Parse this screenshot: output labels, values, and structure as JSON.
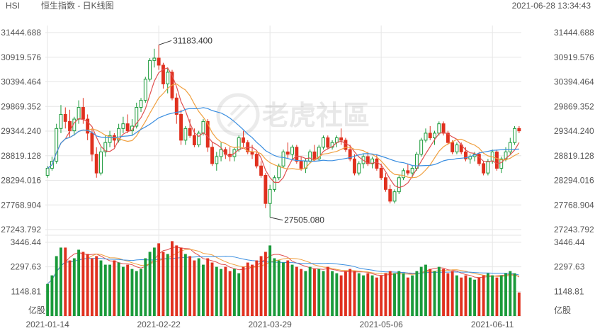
{
  "header": {
    "symbol": "HSI",
    "name": "恒生指数 - 日K线图",
    "datetime": "2021-06-28 13:34:43"
  },
  "watermark": {
    "text": "老虎社區"
  },
  "colors": {
    "up": "#1a9a3a",
    "down": "#e0301e",
    "ma5": "#e05050",
    "ma10": "#f0a040",
    "ma20": "#3a8ee0",
    "grid": "#e6e6e6",
    "text": "#555555"
  },
  "chart_data": {
    "type": "candlestick",
    "price_axis": {
      "ticks": [
        "31444.688",
        "30919.576",
        "30394.464",
        "29869.352",
        "29344.240",
        "28819.128",
        "28294.016",
        "27768.904",
        "27243.792"
      ],
      "range": [
        27243.792,
        31444.688
      ]
    },
    "volume_axis": {
      "ticks": [
        "3446.44",
        "2297.63",
        "1148.81"
      ],
      "unit": "亿股",
      "range": [
        0,
        3446.44
      ]
    },
    "x_ticks": [
      {
        "label": "2021-01-14",
        "index": 0
      },
      {
        "label": "2021-02-22",
        "index": 25
      },
      {
        "label": "2021-03-29",
        "index": 50
      },
      {
        "label": "2021-05-06",
        "index": 75
      },
      {
        "label": "2021-06-11",
        "index": 100
      }
    ],
    "annotations": [
      {
        "label": "31183.400",
        "index": 25,
        "value": 31183.4,
        "kind": "high"
      },
      {
        "label": "27505.080",
        "index": 50,
        "value": 27505.08,
        "kind": "low"
      }
    ],
    "candles": [
      [
        28400,
        28600,
        28350,
        28550,
        1500
      ],
      [
        28550,
        28800,
        28500,
        28700,
        1900
      ],
      [
        28700,
        29500,
        28650,
        29400,
        2800
      ],
      [
        29400,
        29900,
        29300,
        29700,
        3200
      ],
      [
        29700,
        29850,
        29400,
        29550,
        3200
      ],
      [
        29550,
        29800,
        29200,
        29350,
        2600
      ],
      [
        29350,
        29650,
        29250,
        29600,
        2700
      ],
      [
        29600,
        30000,
        29500,
        29850,
        3100
      ],
      [
        29850,
        30050,
        29500,
        29600,
        3000
      ],
      [
        29600,
        29700,
        29150,
        29300,
        2900
      ],
      [
        29300,
        29400,
        28700,
        28850,
        2700
      ],
      [
        28850,
        29000,
        28350,
        28450,
        2800
      ],
      [
        28450,
        29000,
        28400,
        28900,
        2600
      ],
      [
        28900,
        29250,
        28800,
        29100,
        2400
      ],
      [
        29100,
        29350,
        29000,
        29250,
        2400
      ],
      [
        29250,
        29300,
        29000,
        29150,
        2600
      ],
      [
        29150,
        29500,
        29100,
        29400,
        2500
      ],
      [
        29400,
        29650,
        29300,
        29500,
        2300
      ],
      [
        29500,
        29700,
        29300,
        29350,
        2400
      ],
      [
        29350,
        29600,
        29250,
        29450,
        2200
      ],
      [
        29450,
        29950,
        29400,
        29850,
        2100
      ],
      [
        29850,
        30050,
        29750,
        30000,
        2200
      ],
      [
        30000,
        30500,
        29950,
        30450,
        2700
      ],
      [
        30450,
        30900,
        30400,
        30850,
        3000
      ],
      [
        30850,
        31100,
        30700,
        30900,
        3200
      ],
      [
        30900,
        31183.4,
        30650,
        30750,
        3400
      ],
      [
        30750,
        30800,
        30250,
        30350,
        3000
      ],
      [
        30350,
        30700,
        30150,
        30600,
        2900
      ],
      [
        30600,
        30650,
        30000,
        30050,
        3500
      ],
      [
        30050,
        30150,
        29500,
        29700,
        3300
      ],
      [
        29700,
        29800,
        29050,
        29150,
        3200
      ],
      [
        29150,
        29450,
        29050,
        29400,
        2900
      ],
      [
        29400,
        29600,
        29200,
        29250,
        2800
      ],
      [
        29250,
        29400,
        29000,
        29050,
        2600
      ],
      [
        29050,
        29350,
        29000,
        29300,
        2700
      ],
      [
        29300,
        29600,
        29250,
        29550,
        2400
      ],
      [
        29550,
        29600,
        28900,
        29000,
        2700
      ],
      [
        29000,
        29100,
        28600,
        28650,
        2500
      ],
      [
        28650,
        28900,
        28500,
        28800,
        2300
      ],
      [
        28800,
        29100,
        28700,
        28950,
        2200
      ],
      [
        28950,
        29000,
        28750,
        28850,
        2300
      ],
      [
        28850,
        29000,
        28700,
        28800,
        2100
      ],
      [
        28800,
        29000,
        28700,
        28950,
        2200
      ],
      [
        28950,
        29250,
        28900,
        29200,
        2000
      ],
      [
        29200,
        29350,
        29000,
        29100,
        2300
      ],
      [
        29100,
        29150,
        28850,
        28900,
        2500
      ],
      [
        28900,
        29050,
        28750,
        28850,
        2400
      ],
      [
        28850,
        28900,
        28550,
        28600,
        2600
      ],
      [
        28600,
        28700,
        28350,
        28400,
        2800
      ],
      [
        28400,
        28450,
        27700,
        27800,
        3000
      ],
      [
        27800,
        28200,
        27505.08,
        28100,
        3300
      ],
      [
        28100,
        28400,
        28050,
        28350,
        2700
      ],
      [
        28350,
        28650,
        28300,
        28600,
        2600
      ],
      [
        28600,
        28950,
        28550,
        28900,
        2500
      ],
      [
        28900,
        29100,
        28750,
        28850,
        2600
      ],
      [
        28850,
        29050,
        28750,
        29000,
        2400
      ],
      [
        29000,
        29050,
        28650,
        28700,
        2300
      ],
      [
        28700,
        28800,
        28500,
        28550,
        2200
      ],
      [
        28550,
        28750,
        28450,
        28700,
        2100
      ],
      [
        28700,
        28950,
        28650,
        28900,
        2300
      ],
      [
        28900,
        29050,
        28700,
        28750,
        2200
      ],
      [
        28750,
        29050,
        28700,
        29000,
        2200
      ],
      [
        29000,
        29250,
        28950,
        29200,
        2100
      ],
      [
        29200,
        29250,
        28950,
        29000,
        2300
      ],
      [
        29000,
        29150,
        28950,
        29100,
        2100
      ],
      [
        29100,
        29250,
        29000,
        29200,
        2000
      ],
      [
        29200,
        29400,
        29050,
        29150,
        1900
      ],
      [
        29150,
        29200,
        28900,
        28950,
        2100
      ],
      [
        28950,
        29050,
        28700,
        28750,
        2200
      ],
      [
        28750,
        28850,
        28400,
        28450,
        2100
      ],
      [
        28450,
        28700,
        28400,
        28650,
        2000
      ],
      [
        28650,
        28850,
        28550,
        28800,
        1900
      ],
      [
        28800,
        28900,
        28600,
        28650,
        2000
      ],
      [
        28650,
        28800,
        28550,
        28750,
        1900
      ],
      [
        28750,
        28850,
        28500,
        28550,
        1800
      ],
      [
        28550,
        28650,
        28300,
        28350,
        1900
      ],
      [
        28350,
        28450,
        28050,
        28100,
        2000
      ],
      [
        28100,
        28200,
        27800,
        27850,
        2100
      ],
      [
        27850,
        28100,
        27800,
        28050,
        2000
      ],
      [
        28050,
        28400,
        28000,
        28350,
        2100
      ],
      [
        28350,
        28550,
        28300,
        28500,
        2000
      ],
      [
        28500,
        28650,
        28400,
        28450,
        1800
      ],
      [
        28450,
        28600,
        28350,
        28550,
        1900
      ],
      [
        28550,
        28900,
        28500,
        28850,
        2100
      ],
      [
        28850,
        29200,
        28800,
        29150,
        2300
      ],
      [
        29150,
        29400,
        29100,
        29300,
        2400
      ],
      [
        29300,
        29450,
        29150,
        29200,
        2200
      ],
      [
        29200,
        29350,
        29050,
        29300,
        2100
      ],
      [
        29300,
        29550,
        29250,
        29500,
        2300
      ],
      [
        29500,
        29550,
        29250,
        29300,
        2200
      ],
      [
        29300,
        29350,
        29050,
        29100,
        2000
      ],
      [
        29100,
        29150,
        28850,
        28900,
        2100
      ],
      [
        28900,
        29100,
        28850,
        29050,
        1900
      ],
      [
        29050,
        29100,
        28850,
        28900,
        1800
      ],
      [
        28900,
        29000,
        28700,
        28750,
        1900
      ],
      [
        28750,
        28850,
        28650,
        28800,
        1800
      ],
      [
        28800,
        28900,
        28700,
        28850,
        1700
      ],
      [
        28850,
        28900,
        28600,
        28650,
        1800
      ],
      [
        28650,
        28700,
        28400,
        28450,
        1900
      ],
      [
        28450,
        28750,
        28400,
        28700,
        2000
      ],
      [
        28700,
        28950,
        28650,
        28900,
        1900
      ],
      [
        28900,
        28950,
        28500,
        28550,
        1800
      ],
      [
        28550,
        28800,
        28450,
        28750,
        1900
      ],
      [
        28750,
        29000,
        28700,
        28900,
        2000
      ],
      [
        28900,
        29200,
        28850,
        29100,
        2100
      ],
      [
        29100,
        29450,
        29050,
        29400,
        2000
      ],
      [
        29400,
        29450,
        29300,
        29350,
        1100
      ]
    ]
  }
}
